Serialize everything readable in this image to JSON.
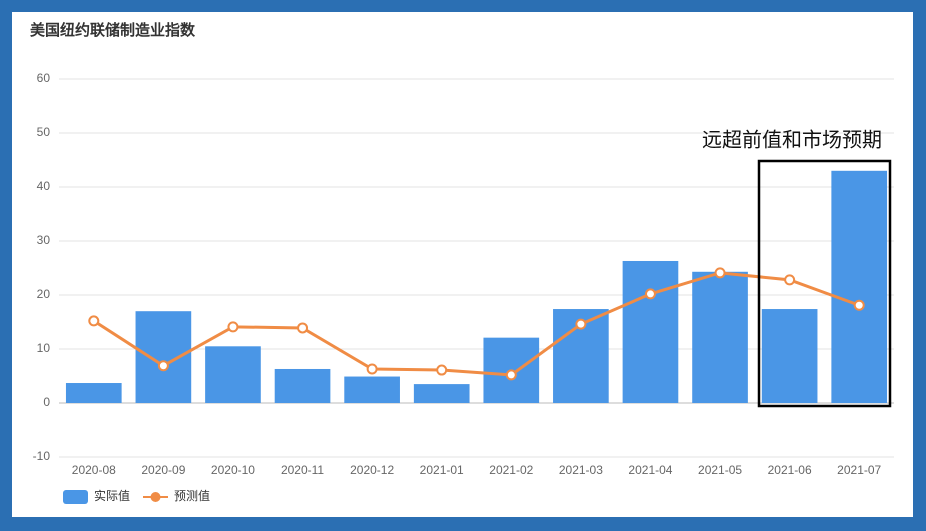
{
  "chart_data": {
    "type": "bar",
    "title": "美国纽约联储制造业指数",
    "annotation": "远超前值和市场预期",
    "categories": [
      "2020-08",
      "2020-09",
      "2020-10",
      "2020-11",
      "2020-12",
      "2021-01",
      "2021-02",
      "2021-03",
      "2021-04",
      "2021-05",
      "2021-06",
      "2021-07"
    ],
    "series": [
      {
        "name": "实际值",
        "type": "bar",
        "color": "#4a96e6",
        "values": [
          3.7,
          17.0,
          10.5,
          6.3,
          4.9,
          3.5,
          12.1,
          17.4,
          26.3,
          24.3,
          17.4,
          43.0
        ]
      },
      {
        "name": "预测值",
        "type": "line",
        "color": "#f08c45",
        "values": [
          15.2,
          6.9,
          14.1,
          13.9,
          6.3,
          6.1,
          5.2,
          14.6,
          20.2,
          24.1,
          22.8,
          18.1
        ]
      }
    ],
    "ylim": [
      -10,
      60
    ],
    "yticks": [
      -10,
      0,
      10,
      20,
      30,
      40,
      50,
      60
    ],
    "grid": true,
    "legend": "bottom-left"
  }
}
